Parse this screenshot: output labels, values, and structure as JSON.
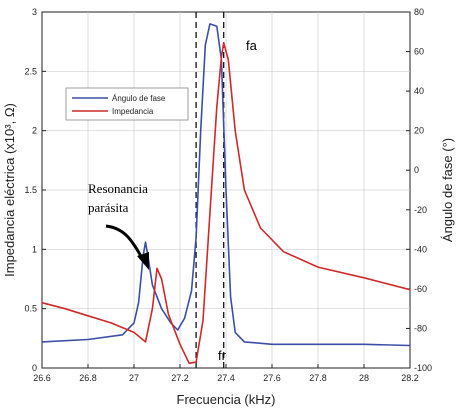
{
  "chart_data": {
    "type": "line",
    "title": "",
    "xlabel": "Frecuencia (kHz)",
    "ylabel_left": "Impedancia eléctrica (x10³, Ω)",
    "ylabel_right": "Ángulo de fase (°)",
    "xlim": [
      26.6,
      28.2
    ],
    "ylim_left": [
      0,
      3
    ],
    "ylim_right": [
      -100,
      80
    ],
    "x_ticks": [
      "26.6",
      "26.8",
      "27",
      "27.2",
      "27.4",
      "27.6",
      "27.8",
      "28",
      "28.2"
    ],
    "y_left_ticks": [
      "0",
      "0.5",
      "1",
      "1.5",
      "2",
      "2.5",
      "3"
    ],
    "y_right_ticks": [
      "-100",
      "-80",
      "-60",
      "-40",
      "-20",
      "0",
      "20",
      "40",
      "60",
      "80"
    ],
    "grid": true,
    "legend_placement": "top-left",
    "series": [
      {
        "name": "Ángulo de fase",
        "axis": "left",
        "color": "#3b4fa8",
        "points": [
          [
            26.6,
            0.22
          ],
          [
            26.8,
            0.24
          ],
          [
            26.95,
            0.28
          ],
          [
            27.0,
            0.38
          ],
          [
            27.02,
            0.55
          ],
          [
            27.04,
            0.95
          ],
          [
            27.05,
            1.06
          ],
          [
            27.06,
            0.95
          ],
          [
            27.08,
            0.7
          ],
          [
            27.12,
            0.5
          ],
          [
            27.16,
            0.38
          ],
          [
            27.19,
            0.32
          ],
          [
            27.22,
            0.42
          ],
          [
            27.25,
            0.65
          ],
          [
            27.27,
            1.1
          ],
          [
            27.29,
            2.0
          ],
          [
            27.31,
            2.72
          ],
          [
            27.33,
            2.9
          ],
          [
            27.36,
            2.88
          ],
          [
            27.38,
            2.6
          ],
          [
            27.4,
            1.5
          ],
          [
            27.42,
            0.6
          ],
          [
            27.44,
            0.3
          ],
          [
            27.48,
            0.22
          ],
          [
            27.6,
            0.2
          ],
          [
            27.8,
            0.2
          ],
          [
            28.0,
            0.2
          ],
          [
            28.2,
            0.19
          ]
        ]
      },
      {
        "name": "Impedancia",
        "axis": "left",
        "color": "#d02a2a",
        "points": [
          [
            26.6,
            0.55
          ],
          [
            26.7,
            0.5
          ],
          [
            26.8,
            0.44
          ],
          [
            26.9,
            0.38
          ],
          [
            27.0,
            0.3
          ],
          [
            27.05,
            0.22
          ],
          [
            27.08,
            0.5
          ],
          [
            27.1,
            0.84
          ],
          [
            27.12,
            0.75
          ],
          [
            27.15,
            0.45
          ],
          [
            27.2,
            0.2
          ],
          [
            27.24,
            0.04
          ],
          [
            27.27,
            0.05
          ],
          [
            27.3,
            0.4
          ],
          [
            27.33,
            1.3
          ],
          [
            27.36,
            2.2
          ],
          [
            27.38,
            2.62
          ],
          [
            27.39,
            2.74
          ],
          [
            27.41,
            2.6
          ],
          [
            27.44,
            2.0
          ],
          [
            27.48,
            1.5
          ],
          [
            27.55,
            1.18
          ],
          [
            27.65,
            0.98
          ],
          [
            27.8,
            0.85
          ],
          [
            28.0,
            0.76
          ],
          [
            28.2,
            0.66
          ]
        ]
      }
    ],
    "legend": [
      "Ángulo de fase",
      "Impedancia"
    ],
    "annotations": {
      "fa": "fa",
      "fr": "fr",
      "fa_x": 27.39,
      "fr_x": 27.27,
      "resonance": [
        "Resonancia",
        "parásita"
      ]
    }
  }
}
